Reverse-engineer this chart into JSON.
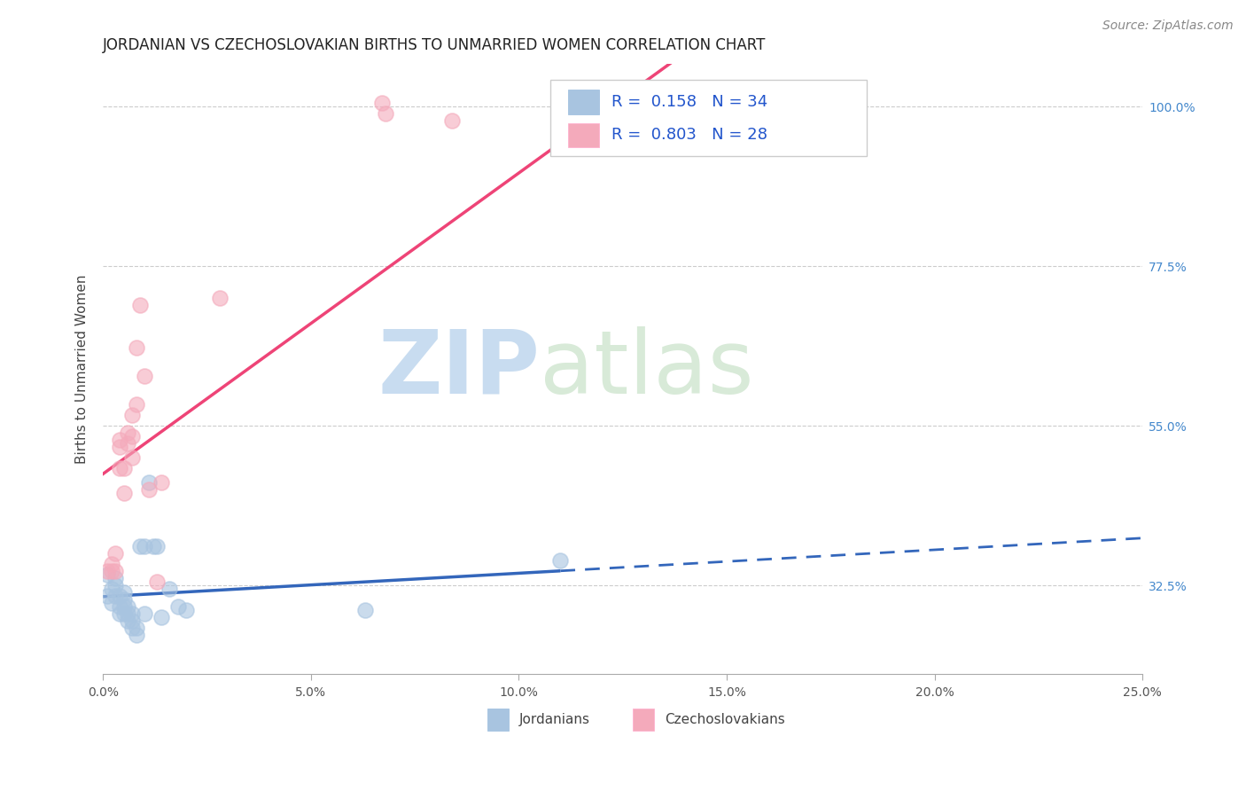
{
  "title": "JORDANIAN VS CZECHOSLOVAKIAN BIRTHS TO UNMARRIED WOMEN CORRELATION CHART",
  "source": "Source: ZipAtlas.com",
  "ylabel": "Births to Unmarried Women",
  "xlim": [
    0.0,
    0.25
  ],
  "ylim": [
    0.2,
    1.06
  ],
  "blue_color": "#A8C4E0",
  "pink_color": "#F4AABB",
  "line_blue": "#3366BB",
  "line_pink": "#EE4477",
  "watermark_zip": "ZIP",
  "watermark_atlas": "atlas",
  "jordanian_x": [
    0.001,
    0.002,
    0.002,
    0.003,
    0.003,
    0.003,
    0.004,
    0.004,
    0.004,
    0.005,
    0.005,
    0.005,
    0.005,
    0.006,
    0.006,
    0.006,
    0.007,
    0.007,
    0.007,
    0.008,
    0.008,
    0.009,
    0.01,
    0.01,
    0.011,
    0.012,
    0.013,
    0.014,
    0.016,
    0.018,
    0.02,
    0.063,
    0.11,
    0.001
  ],
  "jordanian_y": [
    0.31,
    0.3,
    0.32,
    0.31,
    0.325,
    0.335,
    0.285,
    0.295,
    0.31,
    0.285,
    0.295,
    0.305,
    0.315,
    0.275,
    0.285,
    0.295,
    0.265,
    0.275,
    0.285,
    0.255,
    0.265,
    0.38,
    0.285,
    0.38,
    0.47,
    0.38,
    0.38,
    0.28,
    0.32,
    0.295,
    0.29,
    0.29,
    0.36,
    0.34
  ],
  "czechoslovakian_x": [
    0.001,
    0.002,
    0.002,
    0.003,
    0.003,
    0.004,
    0.004,
    0.004,
    0.005,
    0.005,
    0.006,
    0.006,
    0.007,
    0.007,
    0.007,
    0.008,
    0.008,
    0.009,
    0.01,
    0.011,
    0.013,
    0.014,
    0.028,
    0.067,
    0.068,
    0.084,
    0.142,
    0.168
  ],
  "czechoslovakian_y": [
    0.345,
    0.345,
    0.355,
    0.345,
    0.37,
    0.49,
    0.52,
    0.53,
    0.455,
    0.49,
    0.525,
    0.54,
    0.505,
    0.535,
    0.565,
    0.58,
    0.66,
    0.72,
    0.62,
    0.46,
    0.33,
    0.47,
    0.73,
    1.005,
    0.99,
    0.98,
    0.99,
    1.005
  ],
  "legend_r1": "R =  0.158",
  "legend_n1": "N = 34",
  "legend_r2": "R =  0.803",
  "legend_n2": "N = 28",
  "title_fontsize": 12,
  "tick_fontsize": 10,
  "source_fontsize": 10
}
